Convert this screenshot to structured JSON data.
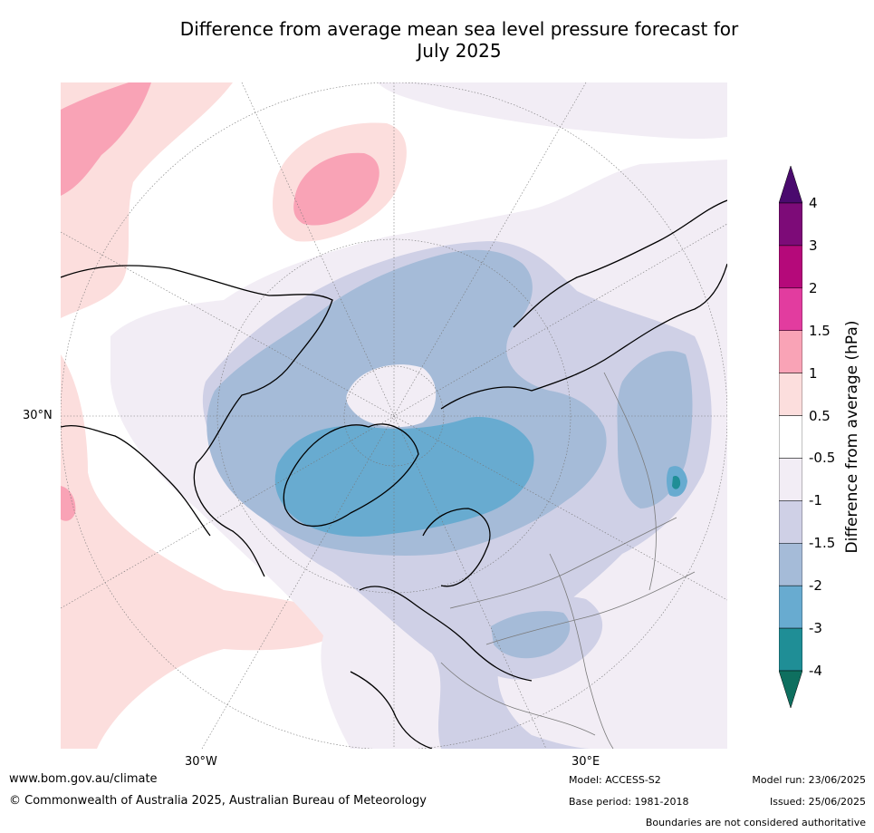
{
  "title_line1": "Difference from average mean sea level pressure forecast for",
  "title_line2": "July 2025",
  "map": {
    "lat_labels": [
      {
        "text": "30°N"
      }
    ],
    "lon_labels": [
      {
        "text": "30°W"
      },
      {
        "text": "30°E"
      }
    ],
    "colors": {
      "minus4": "#0e6f5f",
      "minus3": "#1f8e96",
      "minus2": "#68abd0",
      "minus15": "#a5bbd8",
      "minus1": "#cfd0e6",
      "minus05": "#f2edf5",
      "zero": "#ffffff",
      "plus1": "#fcdedd",
      "plus15": "#f9a3b6",
      "plus2": "#e23c9f",
      "plus3": "#b5097a",
      "plus4": "#7d0b78",
      "plus4over": "#4a0a6e",
      "coast": "#000000",
      "border": "#7a7a7a"
    }
  },
  "colorbar": {
    "label": "Difference from average (hPa)",
    "ticks": [
      "4",
      "3",
      "2",
      "1.5",
      "1",
      "0.5",
      "-0.5",
      "-1",
      "-1.5",
      "-2",
      "-3",
      "-4"
    ],
    "colors": [
      "#7d0b78",
      "#b5097a",
      "#e23c9f",
      "#f9a3b6",
      "#fcdedd",
      "#ffffff",
      "#f2edf5",
      "#cfd0e6",
      "#a5bbd8",
      "#68abd0",
      "#1f8e96"
    ],
    "over_color": "#4a0a6e",
    "under_color": "#0e6f5f"
  },
  "footer": {
    "website": "www.bom.gov.au/climate",
    "copyright": "© Commonwealth of Australia 2025, Australian Bureau of Meteorology",
    "model": "Model: ACCESS-S2",
    "base_period": "Base period: 1981-2018",
    "model_run": "Model run: 23/06/2025",
    "issued": "Issued: 25/06/2025",
    "disclaimer": "Boundaries are not considered authoritative"
  }
}
